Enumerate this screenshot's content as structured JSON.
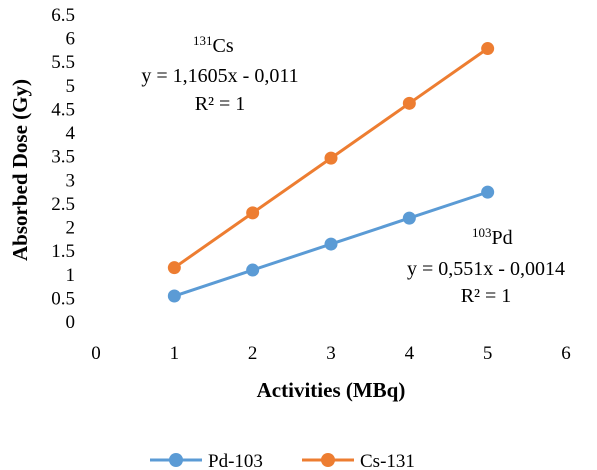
{
  "chart_data": {
    "type": "line",
    "title": "",
    "xlabel": "Activities (MBq)",
    "ylabel": "Absorbed Dose (Gy)",
    "xlim": [
      0,
      6
    ],
    "ylim": [
      0,
      6.5
    ],
    "x_ticks": [
      "0",
      "1",
      "2",
      "3",
      "4",
      "5",
      "6"
    ],
    "y_ticks": [
      "0",
      "0.5",
      "1",
      "1.5",
      "2",
      "2.5",
      "3",
      "3.5",
      "4",
      "4.5",
      "5",
      "5.5",
      "6",
      "6.5"
    ],
    "grid": false,
    "legend_position": "bottom",
    "series": [
      {
        "name": "Pd-103",
        "color": "#5b9bd5",
        "x": [
          1,
          2,
          3,
          4,
          5
        ],
        "y": [
          0.55,
          1.1,
          1.65,
          2.2,
          2.75
        ]
      },
      {
        "name": "Cs-131",
        "color": "#ed7d31",
        "x": [
          1,
          2,
          3,
          4,
          5
        ],
        "y": [
          1.15,
          2.31,
          3.47,
          4.63,
          5.79
        ]
      }
    ],
    "annotations": [
      {
        "series": "Cs-131",
        "isotope_mass": "131",
        "isotope_symbol": "Cs",
        "equation": "y = 1,1605x - 0,011",
        "r_squared": "R² = 1"
      },
      {
        "series": "Pd-103",
        "isotope_mass": "103",
        "isotope_symbol": "Pd",
        "equation": "y = 0,551x - 0,0014",
        "r_squared": "R² = 1"
      }
    ]
  }
}
